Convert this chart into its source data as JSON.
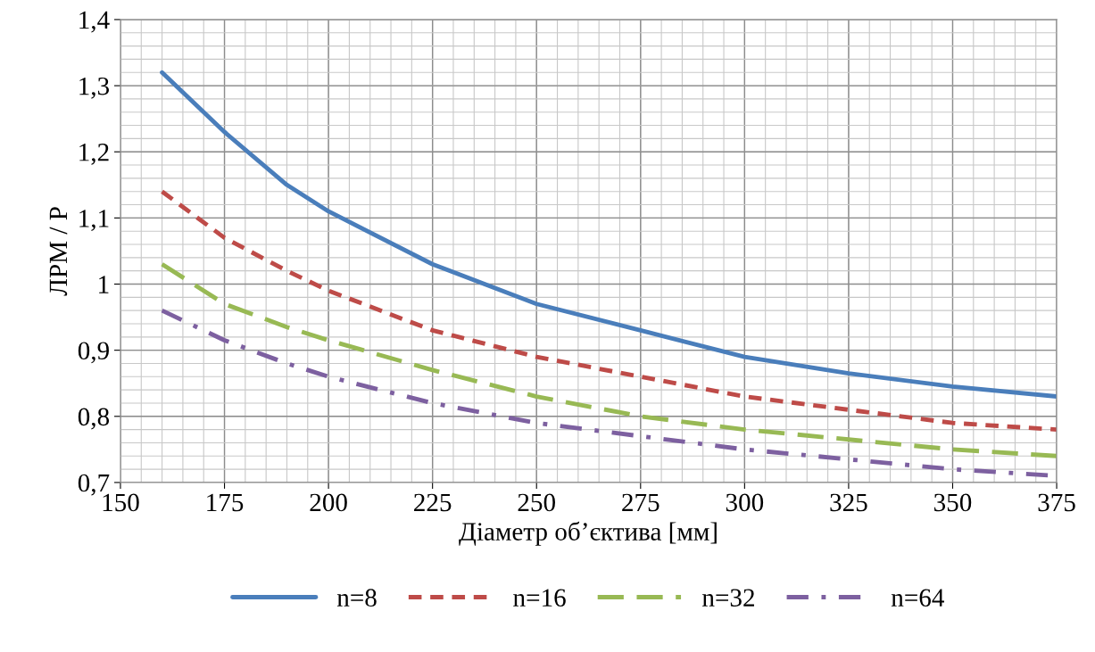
{
  "chart_data": {
    "type": "line",
    "xlabel": "Діаметр об’єктива [мм]",
    "ylabel": "ЛРМ / Р",
    "xlim": [
      150,
      375
    ],
    "xticks": [
      150,
      175,
      200,
      225,
      250,
      275,
      300,
      325,
      350,
      375
    ],
    "ylim": [
      0.7,
      1.4
    ],
    "yticks": [
      {
        "value": 0.7,
        "label": "0,7"
      },
      {
        "value": 0.8,
        "label": "0,8"
      },
      {
        "value": 0.9,
        "label": "0,9"
      },
      1,
      {
        "value": 1.1,
        "label": "1,1"
      },
      {
        "value": 1.2,
        "label": "1,2"
      },
      {
        "value": 1.3,
        "label": "1,3"
      },
      {
        "value": 1.4,
        "label": "1,4"
      }
    ],
    "grid": true,
    "legend": "bottom",
    "marker": "none",
    "x": [
      160,
      175,
      190,
      200,
      225,
      250,
      275,
      300,
      325,
      350,
      375
    ],
    "series": [
      {
        "name": "n=8",
        "color": "#4a7ebb",
        "line_style": "solid",
        "values": [
          1.32,
          1.23,
          1.15,
          1.11,
          1.03,
          0.97,
          0.93,
          0.89,
          0.865,
          0.845,
          0.83
        ]
      },
      {
        "name": "n=16",
        "color": "#be4b48",
        "line_style": "dashed",
        "values": [
          1.14,
          1.07,
          1.02,
          0.99,
          0.93,
          0.89,
          0.86,
          0.83,
          0.81,
          0.79,
          0.78
        ]
      },
      {
        "name": "n=32",
        "color": "#98b954",
        "line_style": "dashed",
        "values": [
          1.03,
          0.97,
          0.935,
          0.915,
          0.87,
          0.83,
          0.8,
          0.78,
          0.765,
          0.75,
          0.74
        ]
      },
      {
        "name": "n=64",
        "color": "#7d60a0",
        "line_style": "dotted",
        "values": [
          0.96,
          0.915,
          0.88,
          0.86,
          0.82,
          0.79,
          0.77,
          0.75,
          0.735,
          0.72,
          0.71
        ]
      }
    ]
  }
}
